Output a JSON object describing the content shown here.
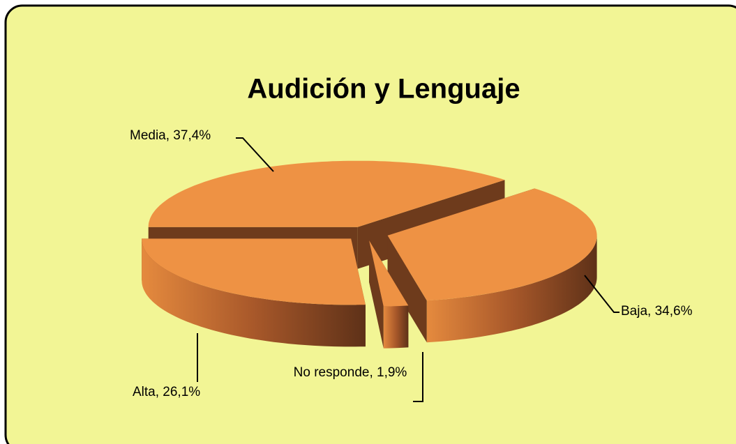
{
  "chart_data": {
    "type": "pie3d",
    "title": "Audición y Lenguaje",
    "labels": [
      "Media, 37,4%",
      "Baja, 34,6%",
      "No responde, 1,9%",
      "Alta, 26,1%"
    ],
    "values": [
      37.4,
      34.6,
      1.9,
      26.1
    ],
    "color": "#ee9244",
    "side_color": "#6e3b1c"
  }
}
